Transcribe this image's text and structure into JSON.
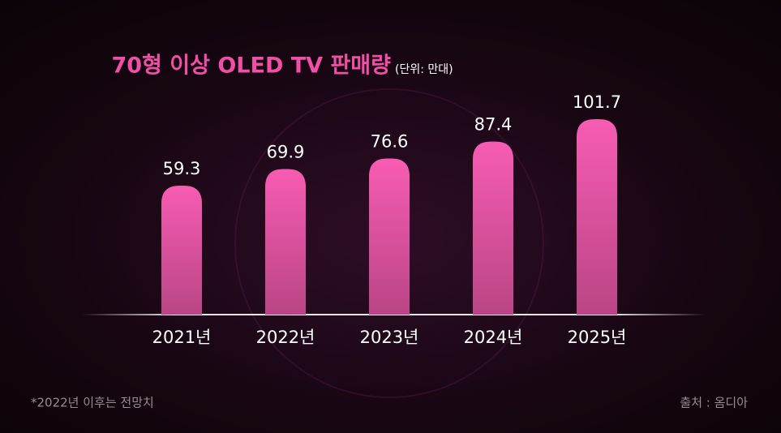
{
  "chart_data": {
    "type": "bar",
    "title": "70형 이상 OLED TV 판매량",
    "subtitle": "(단위: 만대)",
    "categories": [
      "2021년",
      "2022년",
      "2023년",
      "2024년",
      "2025년"
    ],
    "values": [
      59.3,
      69.9,
      76.6,
      87.4,
      101.7
    ],
    "color": "#f75cb2",
    "ylim": [
      -23,
      110
    ],
    "footnote": "*2022년 이후는 전망치",
    "source": "출처 : 옴디아"
  }
}
